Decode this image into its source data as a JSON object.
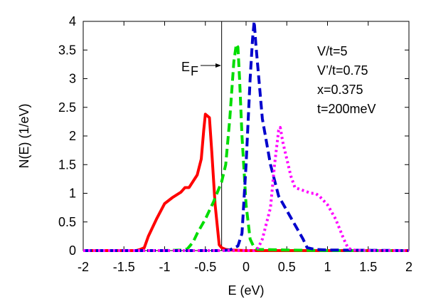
{
  "chart_data": {
    "type": "line",
    "xlabel": "E  (eV)",
    "ylabel": "N(E)   (1/eV)",
    "xlim": [
      -2,
      2
    ],
    "ylim": [
      0,
      4
    ],
    "grid": false,
    "x_ticks": [
      "-2",
      "-1.5",
      "-1",
      "-0.5",
      "0",
      "0.5",
      "1",
      "1.5",
      "2"
    ],
    "y_ticks": [
      "0",
      "0.5",
      "1",
      "1.5",
      "2",
      "2.5",
      "3",
      "3.5",
      "4"
    ],
    "fermi": {
      "x": -0.3,
      "label_main": "E",
      "label_sub": "F"
    },
    "annotations": [
      "V/t=5",
      "V’/t=0.75",
      "x=0.375",
      "t=200meV"
    ],
    "series": [
      {
        "color": "#ff0000",
        "style": "solid",
        "x": [
          -2,
          -1.35,
          -1.3,
          -1.25,
          -1.2,
          -1.1,
          -1.0,
          -0.9,
          -0.8,
          -0.75,
          -0.7,
          -0.6,
          -0.55,
          -0.52,
          -0.5,
          -0.45,
          -0.42,
          -0.38,
          -0.33,
          -0.3,
          -0.25,
          -0.2,
          0,
          0.5,
          1.0,
          1.5,
          2.0
        ],
        "y": [
          0,
          0,
          0.02,
          0.05,
          0.25,
          0.55,
          0.82,
          0.93,
          1.02,
          1.1,
          1.1,
          1.32,
          1.6,
          2.1,
          2.38,
          2.32,
          1.7,
          0.8,
          0.1,
          0.05,
          0.02,
          0.01,
          0,
          0,
          0,
          0,
          0
        ]
      },
      {
        "color": "#00dd00",
        "style": "dash",
        "x": [
          -2,
          -1.0,
          -0.8,
          -0.72,
          -0.65,
          -0.6,
          -0.5,
          -0.4,
          -0.3,
          -0.25,
          -0.2,
          -0.15,
          -0.12,
          -0.1,
          -0.08,
          -0.05,
          0,
          0.05,
          0.1,
          0.15,
          0.5,
          1.0,
          2.0
        ],
        "y": [
          0,
          0,
          0.01,
          0.03,
          0.15,
          0.3,
          0.55,
          0.85,
          1.2,
          1.5,
          2.3,
          3.3,
          3.6,
          3.55,
          3.0,
          2.0,
          0.8,
          0.2,
          0.05,
          0.02,
          0.01,
          0,
          0
        ]
      },
      {
        "color": "#0000cc",
        "style": "dash",
        "x": [
          -2,
          -0.3,
          -0.2,
          -0.1,
          -0.05,
          0,
          0.05,
          0.08,
          0.1,
          0.12,
          0.2,
          0.3,
          0.4,
          0.5,
          0.6,
          0.7,
          0.75,
          0.85,
          1.0,
          2.0
        ],
        "y": [
          0,
          0,
          0.01,
          0.08,
          0.3,
          1.5,
          3.0,
          3.7,
          4.0,
          3.6,
          2.3,
          1.5,
          0.95,
          0.7,
          0.45,
          0.2,
          0.05,
          0.02,
          0.01,
          0
        ]
      },
      {
        "color": "#ff00ff",
        "style": "dot",
        "x": [
          -2,
          0.1,
          0.15,
          0.2,
          0.3,
          0.35,
          0.4,
          0.42,
          0.45,
          0.5,
          0.55,
          0.6,
          0.7,
          0.8,
          0.85,
          0.9,
          1.0,
          1.1,
          1.2,
          1.25,
          1.3,
          1.5,
          2.0
        ],
        "y": [
          0,
          0,
          0.05,
          0.2,
          0.75,
          1.5,
          2.1,
          2.15,
          1.9,
          1.6,
          1.3,
          1.1,
          1.05,
          1.0,
          1.0,
          0.95,
          0.8,
          0.55,
          0.2,
          0.05,
          0.01,
          0,
          0
        ]
      }
    ]
  }
}
